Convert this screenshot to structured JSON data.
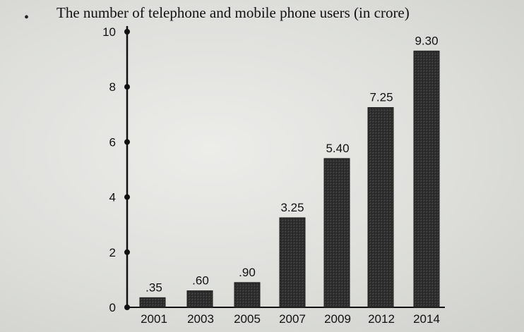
{
  "chart_data": {
    "type": "bar",
    "title": "The number of telephone and mobile phone users (in crore)",
    "xlabel": "",
    "ylabel": "",
    "categories": [
      "2001",
      "2003",
      "2005",
      "2007",
      "2009",
      "2012",
      "2014"
    ],
    "values": [
      0.35,
      0.6,
      0.9,
      3.25,
      5.4,
      7.25,
      9.3
    ],
    "data_labels": [
      ".35",
      ".60",
      ".90",
      "3.25",
      "5.40",
      "7.25",
      "9.30"
    ],
    "ylim": [
      0,
      10
    ],
    "yticks": [
      0,
      2,
      4,
      6,
      8,
      10
    ],
    "grid": false,
    "bar_color": "#2e2e2e",
    "axis_color": "#111111"
  },
  "decor": {
    "bullet": "•"
  }
}
